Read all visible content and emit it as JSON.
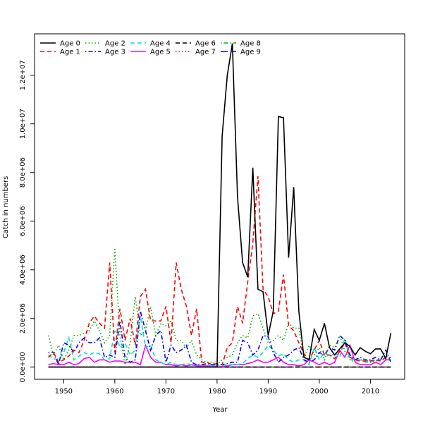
{
  "chart_data": {
    "type": "line",
    "title": "",
    "xlabel": "Year",
    "ylabel": "Catch in numbers",
    "xlim": [
      1944.3,
      2016.7
    ],
    "ylim": [
      -500000,
      13700000
    ],
    "xticks": [
      {
        "value": 1950,
        "label": "1950"
      },
      {
        "value": 1960,
        "label": "1960"
      },
      {
        "value": 1970,
        "label": "1970"
      },
      {
        "value": 1980,
        "label": "1980"
      },
      {
        "value": 1990,
        "label": "1990"
      },
      {
        "value": 2000,
        "label": "2000"
      },
      {
        "value": 2010,
        "label": "2010"
      }
    ],
    "yticks": [
      {
        "value": 0,
        "label": "0.0e+00"
      },
      {
        "value": 2000000,
        "label": "2.0e+06"
      },
      {
        "value": 4000000,
        "label": "4.0e+06"
      },
      {
        "value": 6000000,
        "label": "6.0e+06"
      },
      {
        "value": 8000000,
        "label": "8.0e+06"
      },
      {
        "value": 10000000,
        "label": "1.0e+07"
      },
      {
        "value": 12000000,
        "label": "1.2e+07"
      }
    ],
    "grid": false,
    "legend_position": "top-left",
    "x": [
      1947,
      1948,
      1949,
      1950,
      1951,
      1952,
      1953,
      1954,
      1955,
      1956,
      1957,
      1958,
      1959,
      1960,
      1961,
      1962,
      1963,
      1964,
      1965,
      1966,
      1967,
      1968,
      1969,
      1970,
      1971,
      1972,
      1973,
      1974,
      1975,
      1976,
      1977,
      1978,
      1979,
      1980,
      1981,
      1982,
      1983,
      1984,
      1985,
      1986,
      1987,
      1988,
      1989,
      1990,
      1991,
      1992,
      1993,
      1994,
      1995,
      1996,
      1997,
      1998,
      1999,
      2000,
      2001,
      2002,
      2003,
      2004,
      2005,
      2006,
      2007,
      2008,
      2009,
      2010,
      2011,
      2012,
      2013,
      2014
    ],
    "series": [
      {
        "name": "Age 0",
        "color": "#000000",
        "dash": "solid",
        "values": [
          0,
          0,
          0,
          0,
          0,
          0,
          0,
          0,
          0,
          0,
          0,
          0,
          0,
          0,
          0,
          0,
          0,
          0,
          0,
          0,
          0,
          0,
          0,
          0,
          0,
          0,
          0,
          0,
          0,
          0,
          0,
          0,
          0,
          0,
          9500000,
          12000000,
          13300000,
          7000000,
          4300000,
          3700000,
          8200000,
          3200000,
          3100000,
          1300000,
          2300000,
          10300000,
          10250000,
          4500000,
          7400000,
          2300000,
          400000,
          300000,
          1550000,
          1100000,
          1800000,
          800000,
          500000,
          750000,
          1000000,
          850000,
          500000,
          800000,
          650000,
          550000,
          750000,
          750000,
          350000,
          1400000
        ]
      },
      {
        "name": "Age 1",
        "color": "#ff0000",
        "dash": "dashed",
        "values": [
          400000,
          600000,
          200000,
          300000,
          450000,
          700000,
          600000,
          1100000,
          1800000,
          2100000,
          1800000,
          1600000,
          4300000,
          600000,
          2400000,
          1100000,
          2000000,
          900000,
          2900000,
          3200000,
          1900000,
          1900000,
          1900000,
          2500000,
          1000000,
          4300000,
          3200000,
          2500000,
          1300000,
          2400000,
          200000,
          200000,
          100000,
          150000,
          100000,
          800000,
          1000000,
          2500000,
          1800000,
          3500000,
          5100000,
          7850000,
          3200000,
          2900000,
          2200000,
          2300000,
          3800000,
          1700000,
          1500000,
          1000000,
          550000,
          300000,
          700000,
          1100000,
          500000,
          500000,
          350000,
          650000,
          1000000,
          400000,
          300000,
          250000,
          250000,
          250000,
          300000,
          250000,
          400000,
          400000
        ]
      },
      {
        "name": "Age 2",
        "color": "#00b000",
        "dash": "dotted",
        "values": [
          1300000,
          500000,
          900000,
          300000,
          700000,
          1300000,
          1300000,
          1400000,
          1500000,
          1900000,
          1500000,
          1000000,
          1300000,
          4900000,
          1300000,
          100000,
          1000000,
          2900000,
          1300000,
          1500000,
          2500000,
          1300000,
          1800000,
          1700000,
          1900000,
          1100000,
          1100000,
          800000,
          1100000,
          500000,
          300000,
          200000,
          200000,
          100000,
          300000,
          400000,
          500000,
          1000000,
          1300000,
          1200000,
          2100000,
          2200000,
          1600000,
          1000000,
          1100000,
          1300000,
          1100000,
          1800000,
          1600000,
          1600000,
          400000,
          900000,
          500000,
          800000,
          300000,
          900000,
          800000,
          1300000,
          650000,
          300000,
          200000,
          300000,
          300000,
          200000,
          250000,
          300000,
          300000,
          300000
        ]
      },
      {
        "name": "Age 3",
        "color": "#0000ff",
        "dash": "dashdot",
        "values": [
          600000,
          600000,
          100000,
          1000000,
          900000,
          600000,
          1000000,
          1200000,
          1000000,
          1000000,
          1200000,
          400000,
          500000,
          400000,
          1900000,
          400000,
          200000,
          300000,
          2300000,
          1500000,
          700000,
          1300000,
          1500000,
          200000,
          900000,
          600000,
          700000,
          900000,
          200000,
          100000,
          100000,
          150000,
          100000,
          100000,
          100000,
          150000,
          200000,
          200000,
          1100000,
          1000000,
          500000,
          700000,
          1300000,
          1250000,
          600000,
          200000,
          400000,
          500000,
          700000,
          800000,
          300000,
          200000,
          300000,
          600000,
          500000,
          800000,
          700000,
          1300000,
          1100000,
          500000,
          300000,
          400000,
          300000,
          300000,
          400000,
          300000,
          700000,
          200000
        ]
      },
      {
        "name": "Age 4",
        "color": "#00e0e0",
        "dash": "dashed",
        "values": [
          500000,
          350000,
          300000,
          600000,
          1200000,
          300000,
          450000,
          600000,
          500000,
          600000,
          550000,
          300000,
          350000,
          1500000,
          800000,
          1000000,
          500000,
          700000,
          2100000,
          800000,
          900000,
          300000,
          200000,
          100000,
          200000,
          100000,
          100000,
          150000,
          100000,
          100000,
          100000,
          100000,
          50000,
          50000,
          50000,
          100000,
          100000,
          100000,
          150000,
          350000,
          500000,
          400000,
          600000,
          900000,
          700000,
          450000,
          550000,
          300000,
          200000,
          300000,
          300000,
          100000,
          800000,
          300000,
          600000,
          400000,
          600000,
          400000,
          1200000,
          300000,
          300000,
          300000,
          200000,
          200000,
          300000,
          300000,
          400000,
          500000
        ]
      },
      {
        "name": "Age 5",
        "color": "#ff00ff",
        "dash": "solid",
        "values": [
          100000,
          150000,
          100000,
          100000,
          200000,
          100000,
          150000,
          350000,
          400000,
          200000,
          300000,
          300000,
          200000,
          250000,
          250000,
          200000,
          200000,
          200000,
          100000,
          900000,
          400000,
          200000,
          200000,
          100000,
          100000,
          50000,
          100000,
          50000,
          100000,
          50000,
          50000,
          50000,
          50000,
          30000,
          30000,
          50000,
          100000,
          100000,
          100000,
          150000,
          200000,
          300000,
          200000,
          200000,
          300000,
          400000,
          200000,
          100000,
          100000,
          50000,
          100000,
          300000,
          200000,
          100000,
          200000,
          100000,
          200000,
          700000,
          400000,
          900000,
          200000,
          100000,
          100000,
          100000,
          200000,
          100000,
          300000,
          300000
        ]
      },
      {
        "name": "Age 6",
        "color": "#000000",
        "dash": "dashed",
        "values": [
          0,
          0,
          0,
          0,
          0,
          0,
          0,
          0,
          0,
          0,
          0,
          0,
          0,
          0,
          0,
          0,
          0,
          0,
          0,
          0,
          0,
          0,
          0,
          0,
          0,
          0,
          0,
          0,
          0,
          0,
          0,
          0,
          0,
          0,
          0,
          0,
          0,
          0,
          0,
          0,
          0,
          0,
          0,
          0,
          0,
          0,
          0,
          0,
          0,
          0,
          0,
          0,
          0,
          0,
          0,
          0,
          0,
          0,
          0,
          0,
          0,
          0,
          0,
          0,
          0,
          0,
          0,
          0
        ]
      },
      {
        "name": "Age 7",
        "color": "#ff0000",
        "dash": "dotted",
        "values": [
          0,
          0,
          0,
          0,
          0,
          0,
          0,
          0,
          0,
          0,
          0,
          0,
          0,
          0,
          0,
          0,
          0,
          0,
          0,
          0,
          0,
          0,
          0,
          0,
          0,
          0,
          0,
          0,
          0,
          0,
          0,
          0,
          0,
          0,
          0,
          0,
          0,
          0,
          0,
          0,
          0,
          0,
          0,
          0,
          0,
          0,
          0,
          0,
          0,
          0,
          0,
          0,
          0,
          0,
          0,
          0,
          0,
          0,
          0,
          0,
          0,
          0,
          0,
          0,
          0,
          0,
          0,
          0
        ]
      },
      {
        "name": "Age 8",
        "color": "#00b000",
        "dash": "dashdot",
        "values": [
          0,
          0,
          0,
          0,
          0,
          0,
          0,
          0,
          0,
          0,
          0,
          0,
          0,
          0,
          0,
          0,
          0,
          0,
          0,
          0,
          0,
          0,
          0,
          0,
          0,
          0,
          0,
          0,
          0,
          0,
          0,
          0,
          0,
          0,
          0,
          0,
          0,
          0,
          0,
          0,
          0,
          0,
          0,
          0,
          0,
          0,
          0,
          0,
          0,
          0,
          0,
          0,
          0,
          0,
          0,
          0,
          0,
          0,
          0,
          0,
          0,
          0,
          0,
          0,
          0,
          0,
          0,
          0
        ]
      },
      {
        "name": "Age 9",
        "color": "#0000ff",
        "dash": "longdash",
        "values": [
          0,
          0,
          0,
          0,
          0,
          0,
          0,
          0,
          0,
          0,
          0,
          0,
          0,
          0,
          0,
          0,
          0,
          0,
          0,
          0,
          0,
          0,
          0,
          0,
          0,
          0,
          0,
          0,
          0,
          0,
          0,
          0,
          0,
          0,
          0,
          0,
          0,
          0,
          0,
          0,
          0,
          0,
          0,
          0,
          0,
          0,
          0,
          0,
          0,
          0,
          0,
          0,
          0,
          0,
          0,
          0,
          0,
          0,
          0,
          0,
          0,
          0,
          0,
          0,
          0,
          0,
          0,
          0
        ]
      }
    ]
  }
}
